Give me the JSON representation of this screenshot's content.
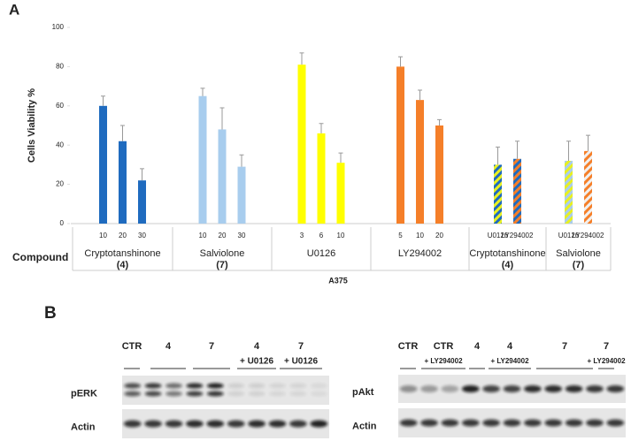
{
  "panel_labels": [
    "A",
    "B"
  ],
  "chart_data": {
    "type": "bar",
    "y_label": "Cells Viability %",
    "x_label": "A375",
    "row_label": "Compound",
    "ylim": [
      0,
      100
    ],
    "yticks": [
      0,
      20,
      40,
      60,
      80,
      100
    ],
    "groups": [
      {
        "name": "Cryptotanshinone",
        "number": "(4)",
        "categories": [
          "10",
          "20",
          "30"
        ],
        "values": [
          60,
          42,
          22
        ],
        "errors": [
          5,
          8,
          6
        ],
        "colors": [
          [
            "#1f6bbf"
          ],
          [
            "#1f6bbf"
          ],
          [
            "#1f6bbf"
          ]
        ]
      },
      {
        "name": "Salviolone",
        "number": "(7)",
        "categories": [
          "10",
          "20",
          "30"
        ],
        "values": [
          65,
          48,
          29
        ],
        "errors": [
          4,
          11,
          6
        ],
        "colors": [
          [
            "#a8cdee"
          ],
          [
            "#a8cdee"
          ],
          [
            "#a8cdee"
          ]
        ]
      },
      {
        "name": "U0126",
        "categories": [
          "3",
          "6",
          "10"
        ],
        "values": [
          81,
          46,
          31
        ],
        "errors": [
          6,
          5,
          5
        ],
        "colors": [
          [
            "#ffff00"
          ],
          [
            "#ffff00"
          ],
          [
            "#ffff00"
          ]
        ]
      },
      {
        "name": "LY294002",
        "categories": [
          "5",
          "10",
          "20"
        ],
        "values": [
          80,
          63,
          50
        ],
        "errors": [
          5,
          5,
          3
        ],
        "colors": [
          [
            "#f57f29"
          ],
          [
            "#f57f29"
          ],
          [
            "#f57f29"
          ]
        ]
      },
      {
        "name": "Cryptotanshinone",
        "number": "(4)",
        "categories": [
          "U0126",
          "LY294002"
        ],
        "values": [
          30,
          33
        ],
        "errors": [
          9,
          9
        ],
        "colors": [
          [
            "#e8f020",
            "#1f6bbf"
          ],
          [
            "#f57f29",
            "#1f6bbf"
          ]
        ]
      },
      {
        "name": "Salviolone",
        "number": "(7)",
        "categories": [
          "U0126",
          "LY294002"
        ],
        "values": [
          32,
          37
        ],
        "errors": [
          10,
          8
        ],
        "colors": [
          [
            "#e8f020",
            "#a8cdee"
          ],
          [
            "#f57f29",
            "#f0f0f0"
          ]
        ]
      }
    ]
  },
  "blots": [
    {
      "lanes": [
        {
          "label": "CTR"
        },
        {
          "label": "4"
        },
        {
          "label": "7"
        },
        {
          "label": "4",
          "treatment": "+ U0126"
        },
        {
          "label": "7",
          "treatment": "+ U0126"
        }
      ],
      "rows": [
        "pERK",
        "Actin"
      ]
    },
    {
      "lanes": [
        {
          "label": "CTR"
        },
        {
          "label": "CTR",
          "treatment": "+ LY294002"
        },
        {
          "label": "4"
        },
        {
          "label": "4",
          "treatment": "+ LY294002"
        },
        {
          "label": "7"
        },
        {
          "label": "7",
          "treatment": "+ LY294002"
        }
      ],
      "rows": [
        "pAkt",
        "Actin"
      ]
    }
  ]
}
